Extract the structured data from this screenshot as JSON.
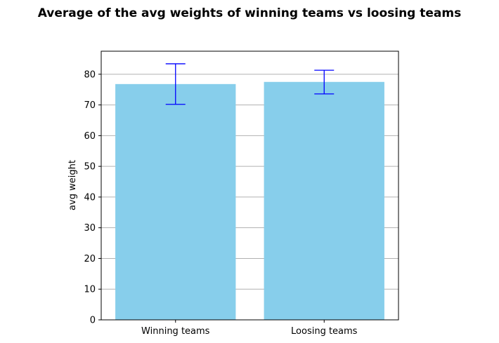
{
  "chart_data": {
    "type": "bar",
    "title": "Average of the avg weights of winning teams vs loosing teams",
    "xlabel": "",
    "ylabel": "avg weight",
    "categories": [
      "Winning teams",
      "Loosing teams"
    ],
    "values": [
      76.8,
      77.5
    ],
    "error_low": [
      70.2,
      73.6
    ],
    "error_high": [
      83.4,
      81.3
    ],
    "ylim": [
      0,
      87.5
    ],
    "yticks": [
      0,
      10,
      20,
      30,
      40,
      50,
      60,
      70,
      80
    ],
    "grid": "y",
    "colors": {
      "bar": "#87ceeb",
      "errorbar": "#0000ff",
      "grid": "#b0b0b0"
    }
  }
}
